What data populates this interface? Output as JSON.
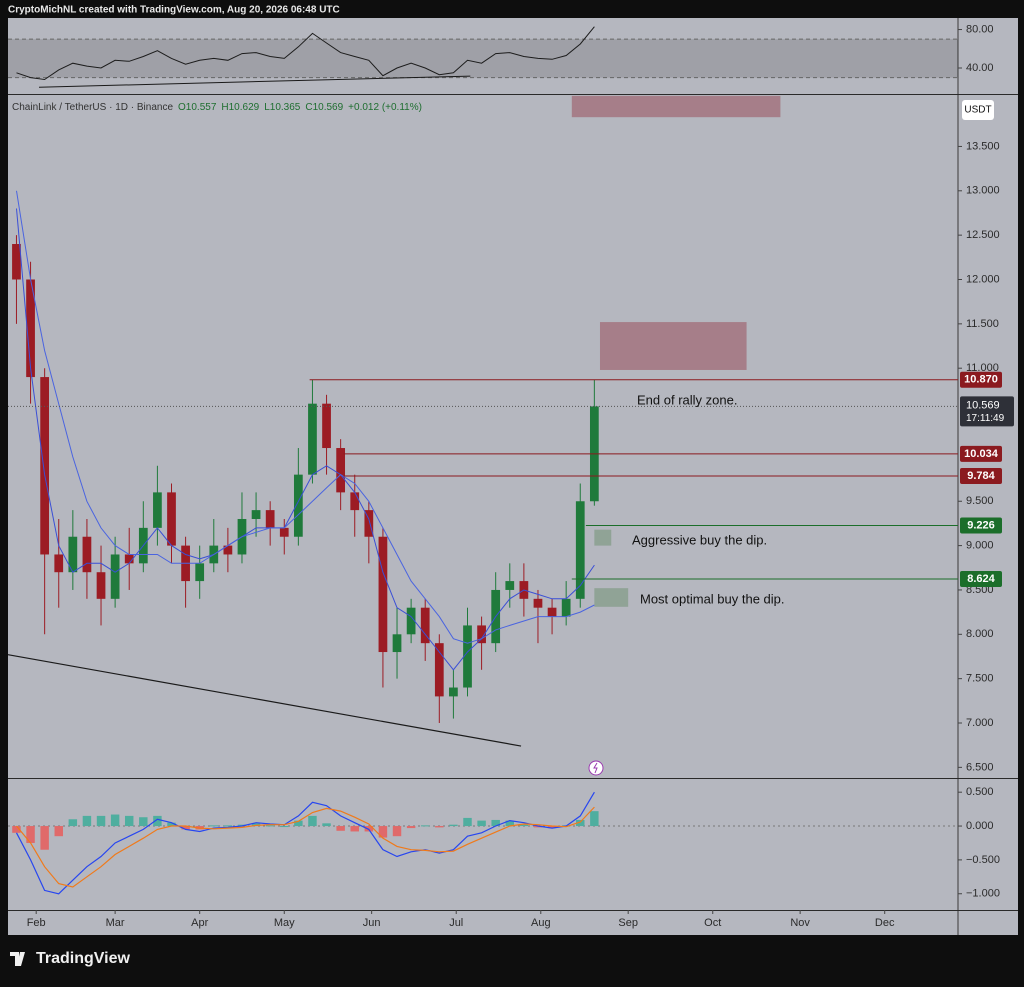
{
  "page": {
    "watermark": "CryptoMichNL created with TradingView.com, Aug 20, 2026 06:48 UTC",
    "brand": "TradingView"
  },
  "chart_data": {
    "type": "candlestick",
    "title": "ChainLink / TetherUS · 1D · Binance",
    "ohlc_legend": [
      "O10.557",
      "H10.629",
      "L10.365",
      "C10.569",
      "+0.012 (+0.11%)"
    ],
    "currency": "USDT",
    "xlim": [
      0,
      337
    ],
    "xticks": [
      {
        "value": 10,
        "label": "Feb"
      },
      {
        "value": 38,
        "label": "Mar"
      },
      {
        "value": 68,
        "label": "Apr"
      },
      {
        "value": 98,
        "label": "May"
      },
      {
        "value": 129,
        "label": "Jun"
      },
      {
        "value": 159,
        "label": "Jul"
      },
      {
        "value": 189,
        "label": "Aug"
      },
      {
        "value": 220,
        "label": "Sep"
      },
      {
        "value": 250,
        "label": "Oct"
      },
      {
        "value": 281,
        "label": "Nov"
      },
      {
        "value": 311,
        "label": "Dec"
      }
    ],
    "x": [
      3,
      8,
      13,
      18,
      23,
      28,
      33,
      38,
      43,
      48,
      53,
      58,
      63,
      68,
      73,
      78,
      83,
      88,
      93,
      98,
      103,
      108,
      113,
      118,
      123,
      128,
      133,
      138,
      143,
      148,
      153,
      158,
      163,
      168,
      173,
      178,
      183,
      188,
      193,
      198,
      203,
      208
    ],
    "open": [
      12.4,
      12.0,
      10.9,
      8.9,
      8.7,
      9.1,
      8.7,
      8.4,
      8.9,
      8.8,
      9.2,
      9.6,
      9.0,
      8.6,
      8.8,
      9.0,
      8.9,
      9.3,
      9.4,
      9.2,
      9.1,
      9.8,
      10.6,
      10.1,
      9.6,
      9.4,
      9.1,
      7.8,
      8.0,
      8.3,
      7.9,
      7.3,
      7.4,
      8.1,
      7.9,
      8.5,
      8.6,
      8.4,
      8.3,
      8.2,
      8.4,
      9.5
    ],
    "high": [
      12.5,
      12.2,
      11.0,
      9.3,
      9.4,
      9.3,
      9.0,
      9.1,
      9.2,
      9.5,
      9.9,
      9.7,
      9.1,
      9.0,
      9.3,
      9.2,
      9.6,
      9.6,
      9.5,
      9.3,
      10.1,
      10.87,
      10.7,
      10.2,
      9.8,
      9.5,
      9.2,
      8.3,
      8.4,
      8.4,
      8.0,
      7.6,
      8.3,
      8.2,
      8.7,
      8.8,
      8.8,
      8.5,
      8.4,
      8.6,
      9.7,
      10.87
    ],
    "low": [
      11.5,
      10.6,
      8.0,
      8.3,
      8.5,
      8.4,
      8.1,
      8.3,
      8.5,
      8.7,
      9.0,
      8.8,
      8.3,
      8.4,
      8.7,
      8.7,
      8.8,
      9.1,
      9.0,
      8.9,
      9.0,
      9.7,
      9.8,
      9.4,
      9.1,
      8.8,
      7.4,
      7.5,
      7.9,
      7.7,
      7.0,
      7.05,
      7.3,
      7.6,
      7.8,
      8.3,
      8.2,
      7.9,
      8.0,
      8.1,
      8.3,
      9.45
    ],
    "close": [
      12.0,
      10.9,
      8.9,
      8.7,
      9.1,
      8.7,
      8.4,
      8.9,
      8.8,
      9.2,
      9.6,
      9.0,
      8.6,
      8.8,
      9.0,
      8.9,
      9.3,
      9.4,
      9.2,
      9.1,
      9.8,
      10.6,
      10.1,
      9.6,
      9.4,
      9.1,
      7.8,
      8.0,
      8.3,
      7.9,
      7.3,
      7.4,
      8.1,
      7.9,
      8.5,
      8.6,
      8.4,
      8.3,
      8.2,
      8.4,
      9.5,
      10.569
    ],
    "up_color": "#1f7a3b",
    "down_color": "#9c1c24",
    "moving_averages": [
      {
        "color": "#3a4fd6",
        "values": [
          12.8,
          11.0,
          9.8,
          9.0,
          8.7,
          8.8,
          8.8,
          8.7,
          8.8,
          9.0,
          9.2,
          9.0,
          8.9,
          8.85,
          8.9,
          9.0,
          9.1,
          9.2,
          9.2,
          9.2,
          9.5,
          9.8,
          9.9,
          9.8,
          9.6,
          9.3,
          8.7,
          8.3,
          8.2,
          8.0,
          7.8,
          7.6,
          7.8,
          7.95,
          8.2,
          8.4,
          8.5,
          8.45,
          8.4,
          8.4,
          8.55,
          8.78
        ]
      },
      {
        "color": "#4a64e0",
        "values": [
          13.0,
          12.0,
          11.2,
          10.6,
          10.0,
          9.5,
          9.2,
          9.0,
          8.9,
          8.9,
          8.9,
          8.8,
          8.8,
          8.8,
          8.9,
          9.0,
          9.1,
          9.15,
          9.2,
          9.2,
          9.35,
          9.5,
          9.65,
          9.8,
          9.7,
          9.5,
          9.2,
          8.9,
          8.6,
          8.4,
          8.2,
          7.95,
          7.9,
          7.95,
          8.05,
          8.1,
          8.15,
          8.2,
          8.2,
          8.2,
          8.25,
          8.33
        ]
      }
    ],
    "ylim": [
      6.38,
      14.08
    ],
    "yticks": [
      {
        "value": 6.5,
        "label": "6.500"
      },
      {
        "value": 7,
        "label": "7.000"
      },
      {
        "value": 7.5,
        "label": "7.500"
      },
      {
        "value": 8,
        "label": "8.000"
      },
      {
        "value": 8.5,
        "label": "8.500"
      },
      {
        "value": 9,
        "label": "9.000"
      },
      {
        "value": 9.5,
        "label": "9.500"
      },
      {
        "value": 11,
        "label": "11.000"
      },
      {
        "value": 11.5,
        "label": "11.500"
      },
      {
        "value": 12,
        "label": "12.000"
      },
      {
        "value": 12.5,
        "label": "12.500"
      },
      {
        "value": 13,
        "label": "13.000"
      },
      {
        "value": 13.5,
        "label": "13.500"
      }
    ],
    "grid": false,
    "levels": [
      {
        "value": 10.87,
        "label": "10.870",
        "start": 107,
        "color": "#8b1a1f"
      },
      {
        "value": 10.034,
        "label": "10.034",
        "start": 119,
        "color": "#8b1a1f"
      },
      {
        "value": 9.784,
        "label": "9.784",
        "start": 119,
        "color": "#8b1a1f"
      },
      {
        "value": 9.226,
        "label": "9.226",
        "start": 205,
        "color": "#1b6e2a"
      },
      {
        "value": 8.624,
        "label": "8.624",
        "start": 200,
        "color": "#1b6e2a"
      }
    ],
    "current": {
      "value": 10.569,
      "label": "10.569",
      "countdown": "17:11:49"
    },
    "zones": [
      {
        "x": [
          200,
          274
        ],
        "y": [
          13.83,
          14.07
        ],
        "color": "#a3747f"
      },
      {
        "x": [
          210,
          262
        ],
        "y": [
          10.98,
          11.52
        ],
        "color": "#a3747f"
      },
      {
        "x": [
          208,
          214
        ],
        "y": [
          9.0,
          9.18
        ],
        "color": "#8aa08e"
      },
      {
        "x": [
          208,
          220
        ],
        "y": [
          8.31,
          8.52
        ],
        "color": "#8aa08e"
      }
    ],
    "annotations": [
      "End of rally zone.",
      "Aggressive buy the dip.",
      "Most optimal buy the dip."
    ],
    "trendline": {
      "x": [
        0,
        182
      ],
      "y": [
        7.77,
        6.74
      ]
    },
    "rsi": {
      "type": "line",
      "color": "#1c1c1c",
      "values": [
        35,
        30,
        28,
        38,
        45,
        42,
        40,
        48,
        47,
        52,
        58,
        50,
        44,
        48,
        50,
        48,
        55,
        56,
        52,
        50,
        62,
        76,
        66,
        56,
        52,
        48,
        32,
        40,
        45,
        40,
        33,
        35,
        48,
        45,
        55,
        56,
        52,
        50,
        49,
        53,
        65,
        83
      ],
      "band": [
        30,
        70
      ],
      "trendline": {
        "x": [
          11,
          164
        ],
        "y": [
          20,
          31.6
        ]
      },
      "ylim": [
        14,
        92
      ],
      "yticks": [
        {
          "value": 40,
          "label": "40.00"
        },
        {
          "value": 80,
          "label": "80.00"
        }
      ]
    },
    "macd": {
      "type": "line",
      "values": [
        -0.1,
        -0.5,
        -0.95,
        -1.0,
        -0.8,
        -0.6,
        -0.45,
        -0.25,
        -0.15,
        -0.05,
        0.1,
        0.05,
        -0.05,
        -0.08,
        -0.03,
        -0.02,
        0.0,
        0.05,
        0.03,
        0.02,
        0.15,
        0.35,
        0.3,
        0.15,
        0.05,
        -0.05,
        -0.35,
        -0.45,
        -0.38,
        -0.35,
        -0.4,
        -0.35,
        -0.15,
        -0.1,
        0.0,
        0.08,
        0.05,
        0.0,
        -0.03,
        0.0,
        0.15,
        0.5
      ],
      "signal": [
        0.0,
        -0.25,
        -0.6,
        -0.85,
        -0.9,
        -0.75,
        -0.6,
        -0.42,
        -0.3,
        -0.18,
        -0.05,
        0.0,
        0.0,
        -0.03,
        -0.04,
        -0.03,
        -0.02,
        0.01,
        0.02,
        0.02,
        0.07,
        0.2,
        0.26,
        0.22,
        0.13,
        0.03,
        -0.18,
        -0.3,
        -0.35,
        -0.36,
        -0.38,
        -0.37,
        -0.27,
        -0.18,
        -0.09,
        0.0,
        0.03,
        0.02,
        0.0,
        -0.01,
        0.06,
        0.28
      ],
      "histogram": [
        -0.1,
        -0.25,
        -0.35,
        -0.15,
        0.1,
        0.15,
        0.15,
        0.17,
        0.15,
        0.13,
        0.15,
        0.05,
        -0.05,
        -0.05,
        0.01,
        0.01,
        0.02,
        0.04,
        0.01,
        0,
        0.08,
        0.15,
        0.04,
        -0.07,
        -0.08,
        -0.08,
        -0.17,
        -0.15,
        -0.03,
        0.01,
        -0.02,
        0.02,
        0.12,
        0.08,
        0.09,
        0.08,
        0.02,
        -0.02,
        -0.03,
        0.01,
        0.09,
        0.22
      ],
      "line_color": "#2746f0",
      "signal_color": "#f07a1a",
      "up_color": "#4fae9f",
      "down_color": "#e06a6a",
      "ylim": [
        -1.24,
        0.68
      ],
      "yticks": [
        {
          "value": 0.5,
          "label": "0.500"
        },
        {
          "value": 0,
          "label": "0.000"
        },
        {
          "value": -0.5,
          "label": "−0.500"
        },
        {
          "value": -1,
          "label": "−1.000"
        }
      ]
    }
  }
}
